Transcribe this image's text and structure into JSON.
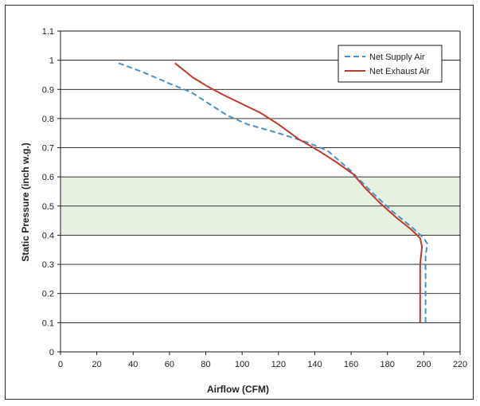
{
  "chart_data": {
    "type": "line",
    "xlabel": "Airflow (CFM)",
    "ylabel": "Static Pressure (inch w.g.)",
    "xlim": [
      0,
      220
    ],
    "ylim": [
      0,
      1.1
    ],
    "x_ticks": [
      0,
      20,
      40,
      60,
      80,
      100,
      120,
      140,
      160,
      180,
      200,
      220
    ],
    "y_ticks": [
      0,
      0.1,
      0.2,
      0.3,
      0.4,
      0.5,
      0.6,
      0.7,
      0.8,
      0.9,
      1,
      1.1
    ],
    "x_tick_labels": [
      "0",
      "20",
      "40",
      "60",
      "80",
      "100",
      "120",
      "140",
      "160",
      "180",
      "200",
      "220"
    ],
    "y_tick_labels": [
      "0",
      "0.1",
      "0.2",
      "0.3",
      "0.4",
      "0.5",
      "0.6",
      "0.7",
      "0.8",
      "0.9",
      "1",
      "1.1"
    ],
    "grid": "horizontal",
    "shaded_band": {
      "y_from": 0.4,
      "y_to": 0.6,
      "color": "#e6f1e1"
    },
    "legend_position": "top-right",
    "series": [
      {
        "name": "Net Supply Air",
        "color": "#4a90c8",
        "style": "dashed",
        "x": [
          32,
          45,
          60,
          72,
          82,
          92,
          103,
          120,
          135,
          147,
          160,
          171,
          183,
          193,
          200,
          202,
          201,
          201,
          201
        ],
        "y": [
          0.99,
          0.96,
          0.92,
          0.89,
          0.85,
          0.81,
          0.78,
          0.75,
          0.72,
          0.69,
          0.62,
          0.55,
          0.48,
          0.43,
          0.39,
          0.37,
          0.33,
          0.2,
          0.1
        ]
      },
      {
        "name": "Net Exhaust Air",
        "color": "#c0392b",
        "style": "solid",
        "x": [
          63,
          73,
          81,
          90,
          100,
          110,
          120,
          131,
          142,
          152,
          161,
          168,
          176,
          185,
          193,
          198,
          199,
          198,
          198
        ],
        "y": [
          0.99,
          0.94,
          0.91,
          0.88,
          0.85,
          0.82,
          0.78,
          0.73,
          0.69,
          0.65,
          0.61,
          0.56,
          0.51,
          0.46,
          0.42,
          0.39,
          0.36,
          0.3,
          0.1
        ]
      }
    ]
  }
}
